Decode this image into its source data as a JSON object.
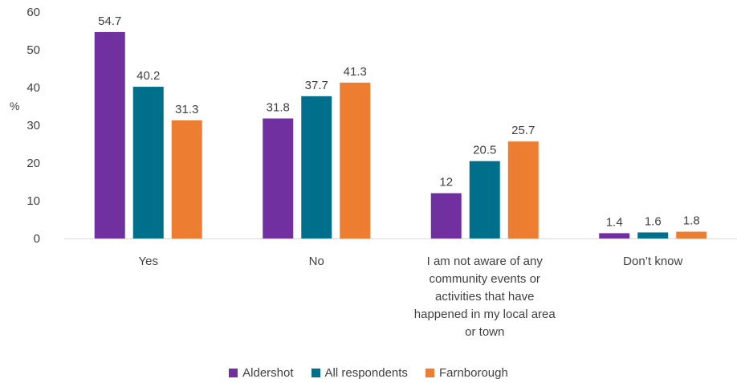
{
  "chart_data": {
    "type": "bar",
    "ylabel": "%",
    "ylim": [
      0,
      60
    ],
    "yticks": [
      0,
      10,
      20,
      30,
      40,
      50,
      60
    ],
    "categories": [
      [
        "Yes"
      ],
      [
        "No"
      ],
      [
        "I am not aware of any",
        "community events or",
        "activities that have",
        "happened in my local area",
        "or town"
      ],
      [
        "Don’t know"
      ]
    ],
    "series": [
      {
        "name": "Aldershot",
        "color": "#7030A0",
        "values": [
          54.7,
          31.8,
          12,
          1.4
        ],
        "labels": [
          "54.7",
          "31.8",
          "12",
          "1.4"
        ]
      },
      {
        "name": "All respondents",
        "color": "#006F8C",
        "values": [
          40.2,
          37.7,
          20.5,
          1.6
        ],
        "labels": [
          "40.2",
          "37.7",
          "20.5",
          "1.6"
        ]
      },
      {
        "name": "Farnborough",
        "color": "#ED7D31",
        "values": [
          31.3,
          41.3,
          25.7,
          1.8
        ],
        "labels": [
          "31.3",
          "41.3",
          "25.7",
          "1.8"
        ]
      }
    ],
    "legend_position": "bottom",
    "grid": false
  }
}
